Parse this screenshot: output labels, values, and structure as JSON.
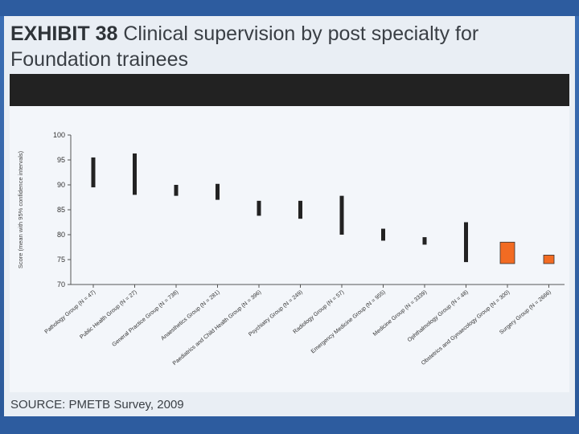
{
  "title": {
    "exhibit": "EXHIBIT 38",
    "rest": "Clinical supervision by post specialty for Foundation trainees"
  },
  "source": "SOURCE: PMETB Survey, 2009",
  "colors": {
    "highlight": "#f26b22",
    "bar": "#222222"
  },
  "chart_data": {
    "type": "range",
    "title": "Clinical supervision by post specialty for Foundation trainees",
    "ylabel": "Score (mean with 95% confidence intervals)",
    "xlabel": "",
    "ylim": [
      70,
      100
    ],
    "yticks": [
      70,
      75,
      80,
      85,
      90,
      95,
      100
    ],
    "categories": [
      "Pathology Group (N = 47)",
      "Public Health Group (N = 27)",
      "General Practice Group (N = 738)",
      "Anaesthetics Group (N = 281)",
      "Paediatrics and Child Health Group (N = 396)",
      "Psychiatry Group (N = 249)",
      "Radiology Group (N = 57)",
      "Emergency Medicine Group (N = 955)",
      "Medicine Group (N = 3339)",
      "Ophthalmology Group (N = 48)",
      "Obstetrics and Gynaecology Group (N = 300)",
      "Surgery Group (N = 2666)"
    ],
    "series": [
      {
        "name": "95% confidence interval",
        "low": [
          89.5,
          88.0,
          87.8,
          87.0,
          83.8,
          83.2,
          80.0,
          78.8,
          78.0,
          74.5,
          74.2,
          74.2
        ],
        "high": [
          95.5,
          96.3,
          90.0,
          90.2,
          86.8,
          86.8,
          87.8,
          81.2,
          79.5,
          82.5,
          78.5,
          75.9
        ],
        "highlight": [
          false,
          false,
          false,
          false,
          false,
          false,
          false,
          false,
          false,
          false,
          true,
          true
        ]
      }
    ]
  }
}
